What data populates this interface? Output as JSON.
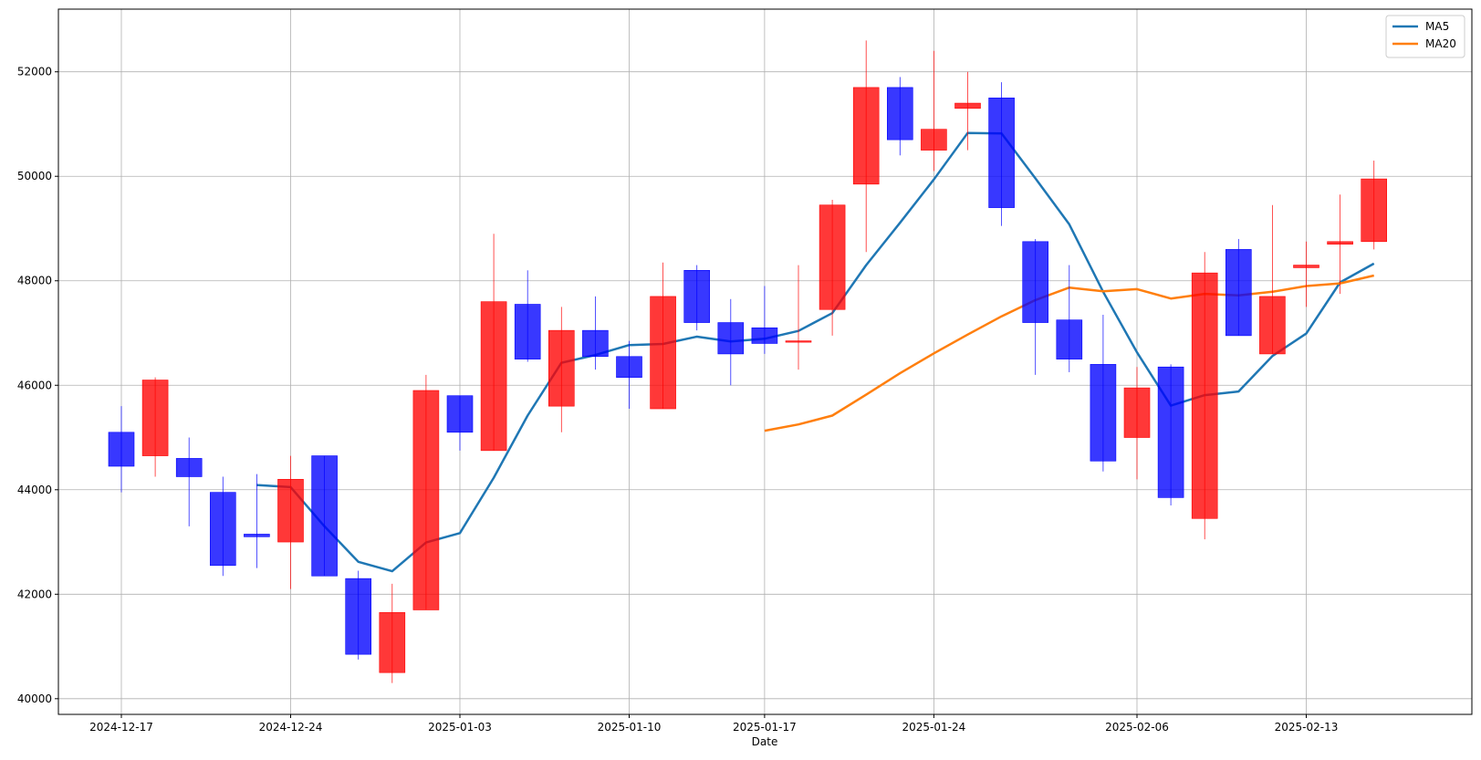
{
  "chart_data": {
    "type": "candlestick",
    "xlabel": "Date",
    "ylabel": "",
    "ylim": [
      39700,
      53200
    ],
    "yticks": [
      40000,
      42000,
      44000,
      46000,
      48000,
      50000,
      52000
    ],
    "xticks": [
      "2024-12-17",
      "2024-12-24",
      "2025-01-03",
      "2025-01-10",
      "2025-01-17",
      "2025-01-24",
      "2025-02-06",
      "2025-02-13"
    ],
    "grid": true,
    "legend": {
      "position": "top-right",
      "entries": [
        "MA5",
        "MA20"
      ]
    },
    "colors": {
      "up": "#ff0000",
      "down": "#0000ff",
      "ma5": "#1f77b4",
      "ma20": "#ff7f0e",
      "grid": "#b0b0b0"
    },
    "candles": [
      {
        "date": "2024-12-17",
        "open": 45100,
        "high": 45600,
        "low": 43950,
        "close": 44450
      },
      {
        "date": "2024-12-18",
        "open": 44650,
        "high": 46150,
        "low": 44250,
        "close": 46100
      },
      {
        "date": "2024-12-19",
        "open": 44600,
        "high": 45000,
        "low": 43300,
        "close": 44250
      },
      {
        "date": "2024-12-20",
        "open": 43950,
        "high": 44250,
        "low": 42350,
        "close": 42550
      },
      {
        "date": "2024-12-23",
        "open": 43150,
        "high": 44300,
        "low": 42500,
        "close": 43100
      },
      {
        "date": "2024-12-24",
        "open": 43000,
        "high": 44650,
        "low": 42100,
        "close": 44200
      },
      {
        "date": "2024-12-25",
        "open": 44650,
        "high": 44650,
        "low": 42350,
        "close": 42350
      },
      {
        "date": "2024-12-26",
        "open": 42300,
        "high": 42450,
        "low": 40750,
        "close": 40850
      },
      {
        "date": "2024-12-27",
        "open": 40500,
        "high": 42200,
        "low": 40300,
        "close": 41650
      },
      {
        "date": "2024-12-30",
        "open": 41700,
        "high": 46200,
        "low": 41700,
        "close": 45900
      },
      {
        "date": "2025-01-03",
        "open": 45800,
        "high": 45800,
        "low": 44750,
        "close": 45100
      },
      {
        "date": "2025-01-06",
        "open": 44750,
        "high": 48900,
        "low": 44750,
        "close": 47600
      },
      {
        "date": "2025-01-07",
        "open": 47550,
        "high": 48200,
        "low": 46450,
        "close": 46500
      },
      {
        "date": "2025-01-08",
        "open": 45600,
        "high": 47500,
        "low": 45100,
        "close": 47050
      },
      {
        "date": "2025-01-09",
        "open": 47050,
        "high": 47700,
        "low": 46300,
        "close": 46550
      },
      {
        "date": "2025-01-10",
        "open": 46550,
        "high": 46850,
        "low": 45550,
        "close": 46150
      },
      {
        "date": "2025-01-14",
        "open": 45550,
        "high": 48350,
        "low": 45550,
        "close": 47700
      },
      {
        "date": "2025-01-15",
        "open": 48200,
        "high": 48300,
        "low": 47050,
        "close": 47200
      },
      {
        "date": "2025-01-16",
        "open": 47200,
        "high": 47650,
        "low": 46000,
        "close": 46600
      },
      {
        "date": "2025-01-17",
        "open": 47100,
        "high": 47900,
        "low": 46600,
        "close": 46800
      },
      {
        "date": "2025-01-20",
        "open": 46850,
        "high": 48300,
        "low": 46300,
        "close": 46850
      },
      {
        "date": "2025-01-21",
        "open": 47450,
        "high": 49550,
        "low": 46950,
        "close": 49450
      },
      {
        "date": "2025-01-22",
        "open": 49850,
        "high": 52600,
        "low": 48550,
        "close": 51700
      },
      {
        "date": "2025-01-23",
        "open": 51700,
        "high": 51900,
        "low": 50400,
        "close": 50700
      },
      {
        "date": "2025-01-24",
        "open": 50500,
        "high": 52400,
        "low": 50100,
        "close": 50900
      },
      {
        "date": "2025-01-27",
        "open": 51300,
        "high": 52000,
        "low": 50500,
        "close": 51400
      },
      {
        "date": "2025-01-28",
        "open": 51500,
        "high": 51800,
        "low": 49050,
        "close": 49400
      },
      {
        "date": "2025-01-29",
        "open": 48750,
        "high": 48800,
        "low": 46200,
        "close": 47200
      },
      {
        "date": "2025-01-30",
        "open": 47250,
        "high": 48300,
        "low": 46250,
        "close": 46500
      },
      {
        "date": "2025-01-31",
        "open": 46400,
        "high": 47350,
        "low": 44350,
        "close": 44550
      },
      {
        "date": "2025-02-06",
        "open": 45000,
        "high": 46350,
        "low": 44200,
        "close": 45950
      },
      {
        "date": "2025-02-07",
        "open": 46350,
        "high": 46400,
        "low": 43700,
        "close": 43850
      },
      {
        "date": "2025-02-10",
        "open": 43450,
        "high": 48550,
        "low": 43050,
        "close": 48150
      },
      {
        "date": "2025-02-11",
        "open": 48600,
        "high": 48800,
        "low": 46950,
        "close": 46950
      },
      {
        "date": "2025-02-12",
        "open": 46600,
        "high": 49450,
        "low": 46600,
        "close": 47700
      },
      {
        "date": "2025-02-13",
        "open": 48250,
        "high": 48750,
        "low": 47500,
        "close": 48300
      },
      {
        "date": "2025-02-14",
        "open": 48700,
        "high": 49650,
        "low": 47750,
        "close": 48750
      },
      {
        "date": "2025-02-17",
        "open": 48750,
        "high": 50300,
        "low": 48600,
        "close": 49950
      }
    ],
    "series": [
      {
        "name": "MA5",
        "values": [
          null,
          null,
          null,
          null,
          44090,
          44050,
          43300,
          42620,
          42440,
          42990,
          43170,
          44230,
          45420,
          46430,
          46580,
          46770,
          46790,
          46930,
          46840,
          46890,
          47040,
          47380,
          48300,
          49110,
          49940,
          50830,
          50820,
          49960,
          49080,
          47790,
          46630,
          45610,
          45810,
          45880,
          46560,
          46990,
          47970,
          48330
        ]
      },
      {
        "name": "MA20",
        "values": [
          null,
          null,
          null,
          null,
          null,
          null,
          null,
          null,
          null,
          null,
          null,
          null,
          null,
          null,
          null,
          null,
          null,
          null,
          null,
          45130,
          45250,
          45420,
          45820,
          46230,
          46610,
          46970,
          47320,
          47630,
          47870,
          47800,
          47840,
          47660,
          47750,
          47720,
          47790,
          47900,
          47950,
          48100
        ]
      }
    ]
  }
}
